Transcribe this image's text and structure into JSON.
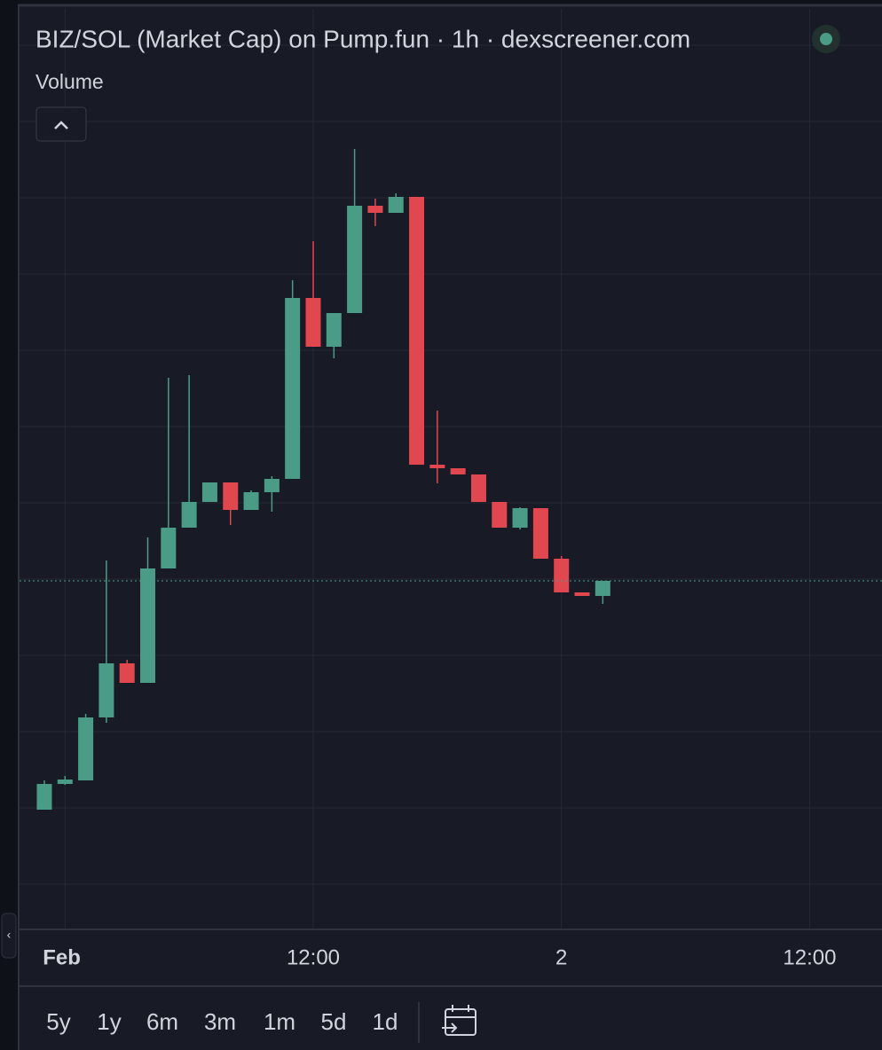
{
  "chart_data": {
    "type": "candlestick",
    "title": "BIZ/SOL (Market Cap) on Pump.fun · 1h · dexscreener.com",
    "subtitle": "Volume",
    "x": [
      -1,
      0,
      1,
      2,
      3,
      4,
      5,
      6,
      7,
      8,
      9,
      10,
      11,
      12,
      13,
      14,
      15,
      16,
      17,
      18,
      19,
      20,
      21,
      22,
      23,
      24,
      25,
      26
    ],
    "open": [
      135,
      164,
      168,
      239,
      300,
      278,
      407,
      453,
      482,
      504,
      473,
      493,
      508,
      712,
      657,
      695,
      816,
      808,
      826,
      524,
      520,
      513,
      482,
      453,
      475,
      418,
      380,
      376
    ],
    "high": [
      168,
      173,
      243,
      416,
      304,
      442,
      622,
      625,
      504,
      504,
      495,
      511,
      732,
      776,
      695,
      880,
      824,
      830,
      826,
      585,
      520,
      513,
      482,
      476,
      475,
      421,
      380,
      393
    ],
    "low": [
      135,
      163,
      168,
      233,
      278,
      278,
      407,
      453,
      482,
      456,
      473,
      471,
      508,
      657,
      644,
      695,
      793,
      808,
      524,
      503,
      513,
      482,
      453,
      451,
      418,
      380,
      376,
      367
    ],
    "close": [
      164,
      169,
      239,
      300,
      278,
      407,
      453,
      482,
      504,
      473,
      493,
      508,
      712,
      657,
      695,
      816,
      808,
      826,
      524,
      520,
      513,
      482,
      453,
      475,
      418,
      380,
      376,
      393
    ],
    "up_color": "#4b9c86",
    "down_color": "#e0474f",
    "xlim": [
      -2.2,
      39.5
    ],
    "ylim": [
      0,
      1038
    ],
    "xticks": [
      {
        "value": 0,
        "label": "Feb"
      },
      {
        "value": 12,
        "label": "12:00"
      },
      {
        "value": 24,
        "label": "2"
      },
      {
        "value": 36,
        "label": "12:00"
      }
    ],
    "grid": true
  },
  "ui": {
    "ranges": [
      "5y",
      "1y",
      "6m",
      "3m",
      "1m",
      "5d",
      "1d"
    ]
  }
}
